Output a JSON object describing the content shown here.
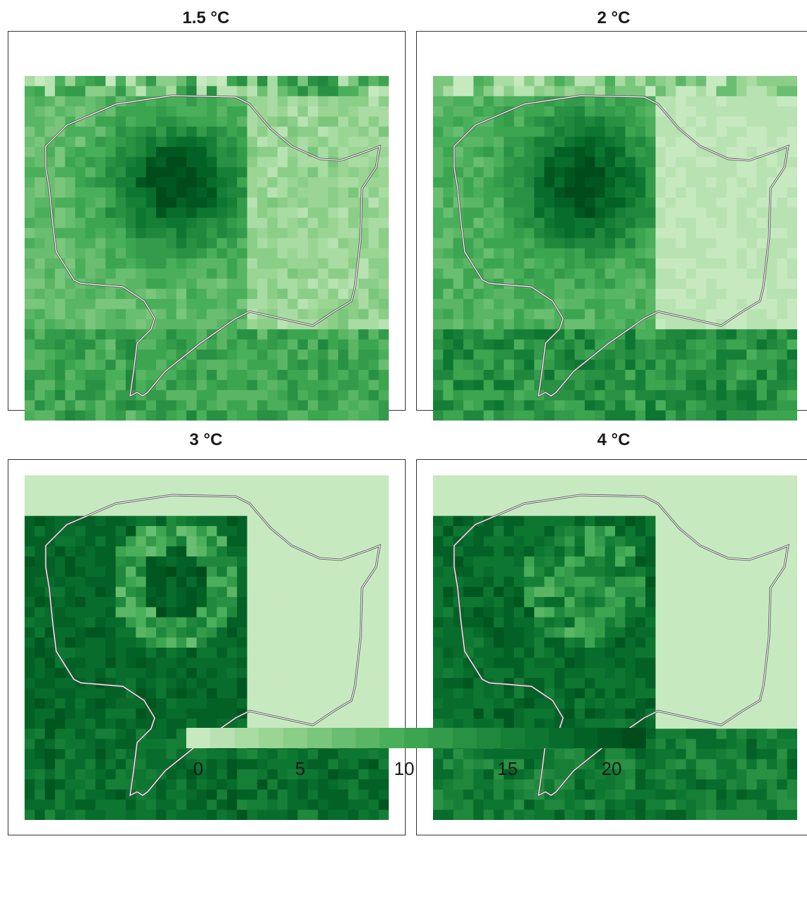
{
  "colors": [
    "#c7e9c0",
    "#b8e2b1",
    "#a9dca3",
    "#9ad594",
    "#8ace88",
    "#7ac67c",
    "#69be71",
    "#5ab665",
    "#4aaf5a",
    "#3ca550",
    "#339b4a",
    "#299143",
    "#20883c",
    "#167f37",
    "#0d7732",
    "#086c2c",
    "#036126",
    "#00561f",
    "#004b1a"
  ],
  "outline_color": "#ffffff",
  "panels": [
    {
      "title": "1.5 °C"
    },
    {
      "title": "2 °C"
    },
    {
      "title": "3 °C"
    },
    {
      "title": "4 °C"
    }
  ],
  "legend": {
    "min": 0,
    "max": 22,
    "ticks": [
      "0",
      "5",
      "10",
      "15",
      "20"
    ]
  }
}
